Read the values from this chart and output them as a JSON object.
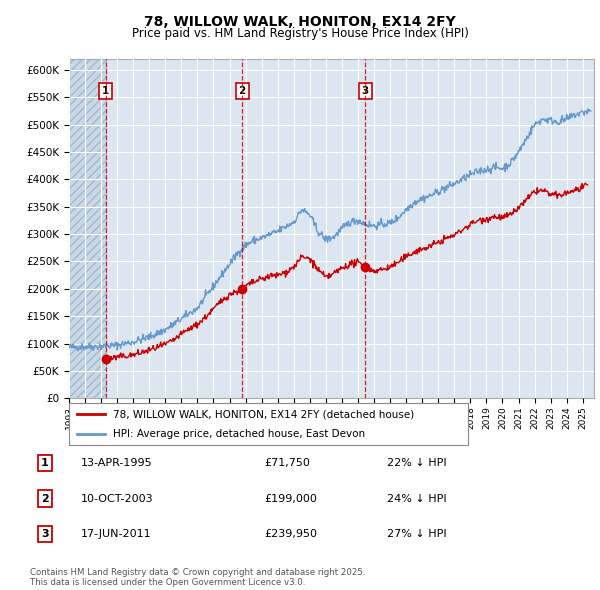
{
  "title": "78, WILLOW WALK, HONITON, EX14 2FY",
  "subtitle": "Price paid vs. HM Land Registry's House Price Index (HPI)",
  "ylim": [
    0,
    620000
  ],
  "yticks": [
    0,
    50000,
    100000,
    150000,
    200000,
    250000,
    300000,
    350000,
    400000,
    450000,
    500000,
    550000,
    600000
  ],
  "ytick_labels": [
    "£0",
    "£50K",
    "£100K",
    "£150K",
    "£200K",
    "£250K",
    "£300K",
    "£350K",
    "£400K",
    "£450K",
    "£500K",
    "£550K",
    "£600K"
  ],
  "xlim_start": 1993.0,
  "xlim_end": 2025.7,
  "background_color": "#dce6f1",
  "hatch_region_end": 1995.28,
  "grid_color": "#ffffff",
  "red_line_color": "#cc0000",
  "blue_line_color": "#6699cc",
  "sale_dates_num": [
    1995.28,
    2003.78,
    2011.46
  ],
  "sale_prices": [
    71750,
    199000,
    239950
  ],
  "sale_labels": [
    "1",
    "2",
    "3"
  ],
  "legend_line1": "78, WILLOW WALK, HONITON, EX14 2FY (detached house)",
  "legend_line2": "HPI: Average price, detached house, East Devon",
  "table_rows": [
    [
      "1",
      "13-APR-1995",
      "£71,750",
      "22% ↓ HPI"
    ],
    [
      "2",
      "10-OCT-2003",
      "£199,000",
      "24% ↓ HPI"
    ],
    [
      "3",
      "17-JUN-2011",
      "£239,950",
      "27% ↓ HPI"
    ]
  ],
  "footer": "Contains HM Land Registry data © Crown copyright and database right 2025.\nThis data is licensed under the Open Government Licence v3.0.",
  "title_fontsize": 10,
  "subtitle_fontsize": 8.5,
  "tick_fontsize": 7.5
}
